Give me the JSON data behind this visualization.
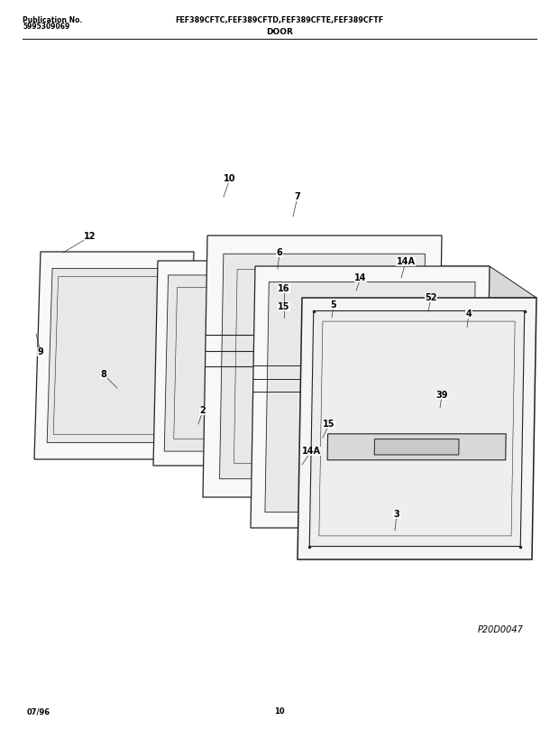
{
  "title_left1": "Publication No.",
  "title_left2": "5995309069",
  "title_center_top": "FEF389CFTC,FEF389CFTD,FEF389CFTE,FEF389CFTF",
  "title_center_bottom": "DOOR",
  "footer_left": "07/96",
  "footer_center": "10",
  "diagram_id": "P20D0047",
  "bg_color": "#ffffff",
  "line_color": "#222222",
  "text_color": "#000000",
  "figsize": [
    6.2,
    8.09
  ],
  "dpi": 100
}
